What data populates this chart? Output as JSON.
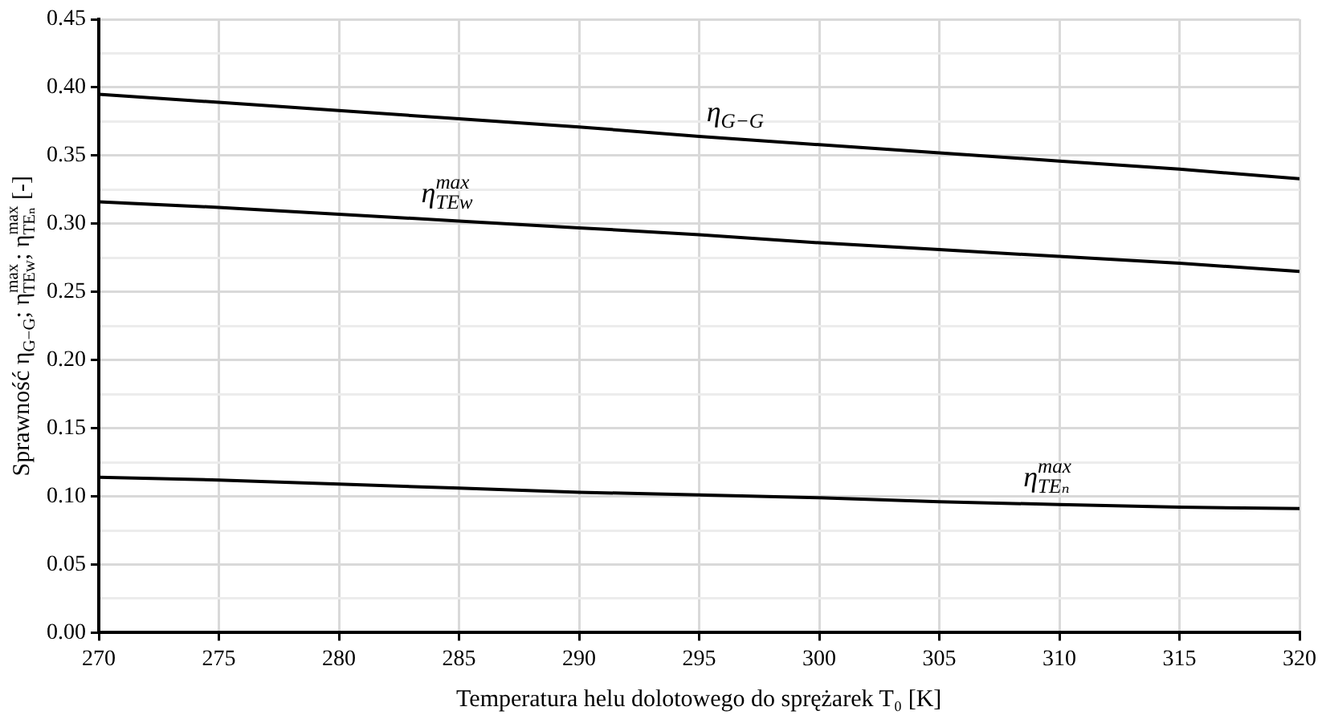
{
  "chart_data": {
    "type": "line",
    "xlabel": "Temperatura helu dolotowego do sprężarek T₀ [K]",
    "ylabel": "Sprawność η$_{G−G}$; η$^{max}$$_{TEw}$; η$^{max}$$_{TEₙ}$ [-]",
    "x": [
      270,
      275,
      280,
      285,
      290,
      295,
      300,
      305,
      310,
      315,
      320
    ],
    "series": [
      {
        "color": "#000000",
        "values": [
          0.395,
          0.389,
          0.383,
          0.377,
          0.371,
          0.364,
          0.358,
          0.352,
          0.346,
          0.34,
          0.333
        ]
      },
      {
        "color": "#000000",
        "values": [
          0.316,
          0.312,
          0.307,
          0.302,
          0.297,
          0.292,
          0.286,
          0.281,
          0.276,
          0.271,
          0.265
        ]
      },
      {
        "color": "#000000",
        "values": [
          0.114,
          0.112,
          0.109,
          0.106,
          0.103,
          0.101,
          0.099,
          0.096,
          0.094,
          0.092,
          0.091
        ]
      }
    ],
    "xlim": [
      270,
      320
    ],
    "xticks": [
      270,
      275,
      280,
      285,
      290,
      295,
      300,
      305,
      310,
      315,
      320
    ],
    "ylim": [
      0,
      0.45
    ],
    "yticks": [
      {
        "value": 0,
        "label": "0.00"
      },
      {
        "value": 0.025,
        "label": null
      },
      {
        "value": 0.05,
        "label": "0.05"
      },
      {
        "value": 0.075,
        "label": null
      },
      {
        "value": 0.1,
        "label": "0.10"
      },
      {
        "value": 0.125,
        "label": null
      },
      {
        "value": 0.15,
        "label": "0.15"
      },
      {
        "value": 0.175,
        "label": null
      },
      {
        "value": 0.2,
        "label": "0.20"
      },
      {
        "value": 0.225,
        "label": null
      },
      {
        "value": 0.25,
        "label": "0.25"
      },
      {
        "value": 0.275,
        "label": null
      },
      {
        "value": 0.3,
        "label": "0.30"
      },
      {
        "value": 0.325,
        "label": null
      },
      {
        "value": 0.35,
        "label": "0.35"
      },
      {
        "value": 0.375,
        "label": null
      },
      {
        "value": 0.4,
        "label": "0.40"
      },
      {
        "value": 0.425,
        "label": null
      },
      {
        "value": 0.45,
        "label": "0.45"
      }
    ],
    "grid": true,
    "legend": false,
    "marker": "none",
    "line_style": "solid",
    "annotations": [
      "η$_{G−G}$",
      "η$^{max}$$_{TEw}$",
      "η$^{max}$$_{TEₙ}$"
    ]
  }
}
